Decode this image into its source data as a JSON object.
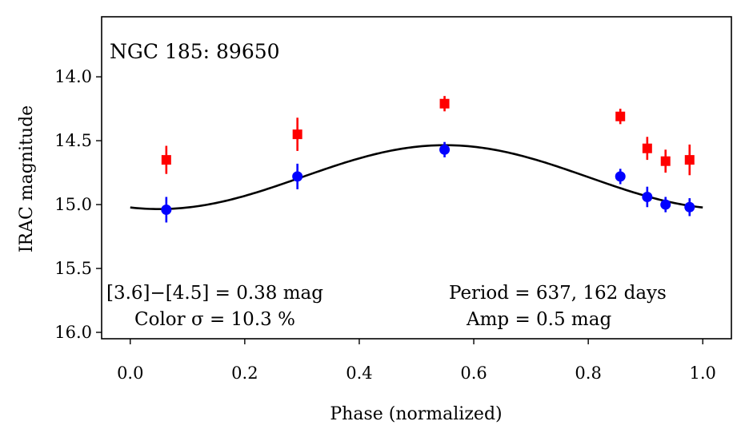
{
  "chart_data": {
    "type": "scatter",
    "title": "NGC 185:  89650",
    "xlabel": "Phase (normalized)",
    "ylabel": "IRAC magnitude",
    "xlim": [
      -0.05,
      1.05
    ],
    "ylim": [
      16.05,
      13.53
    ],
    "y_inverted": true,
    "grid": false,
    "x_ticks": [
      0.0,
      0.2,
      0.4,
      0.6,
      0.8,
      1.0
    ],
    "x_tick_labels": [
      "0.0",
      "0.2",
      "0.4",
      "0.6",
      "0.8",
      "1.0"
    ],
    "y_ticks": [
      14.0,
      14.5,
      15.0,
      15.5,
      16.0
    ],
    "y_tick_labels": [
      "14.0",
      "14.5",
      "15.0",
      "15.5",
      "16.0"
    ],
    "series": [
      {
        "name": "[3.6]",
        "color": "#ff0000",
        "marker": "square",
        "x": [
          0.063,
          0.292,
          0.549,
          0.856,
          0.903,
          0.935,
          0.977
        ],
        "y": [
          14.65,
          14.45,
          14.21,
          14.31,
          14.56,
          14.66,
          14.65
        ],
        "yerr": [
          0.11,
          0.13,
          0.06,
          0.06,
          0.09,
          0.09,
          0.12
        ]
      },
      {
        "name": "[4.5]",
        "color": "#0000ff",
        "marker": "circle",
        "x": [
          0.063,
          0.292,
          0.549,
          0.856,
          0.903,
          0.935,
          0.977
        ],
        "y": [
          15.04,
          14.78,
          14.57,
          14.78,
          14.94,
          15.0,
          15.02
        ],
        "yerr": [
          0.1,
          0.1,
          0.06,
          0.06,
          0.08,
          0.06,
          0.07
        ]
      }
    ],
    "model_curve": {
      "name": "sinusoidal fit",
      "color": "#000000",
      "mean": 14.785,
      "amplitude": 0.5,
      "peak_phase": 0.55,
      "x_range": [
        0.0,
        1.0
      ]
    },
    "annotations": {
      "color_text": "[3.6]−[4.5] = 0.38 mag",
      "sigma_text": "Color σ = 10.3 %",
      "period_text": "Period = 637, 162 days",
      "amp_text": "Amp = 0.5 mag"
    }
  }
}
